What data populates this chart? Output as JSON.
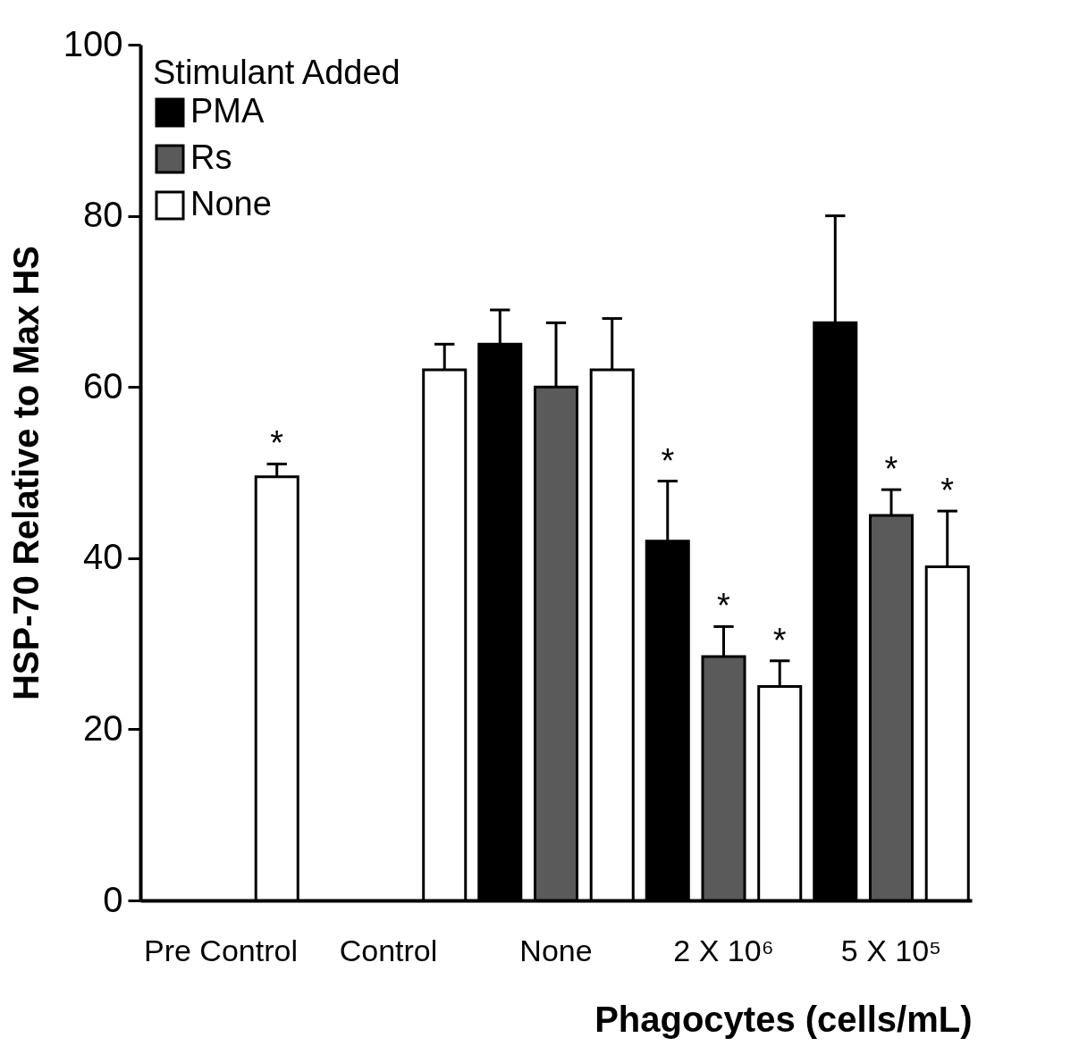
{
  "chart_data": {
    "type": "bar",
    "xlabel": "Phagocytes (cells/mL)",
    "ylabel": "HSP-70 Relative to Max HS",
    "legend_title": "Stimulant Added",
    "categories": [
      "Pre Control",
      "Control",
      "None",
      "2 X 10⁶",
      "5 X 10⁵"
    ],
    "series": [
      {
        "name": "PMA",
        "color": "#000000",
        "values": [
          null,
          null,
          65,
          42,
          67.5
        ],
        "errors": [
          null,
          null,
          [
            65,
            69
          ],
          [
            42,
            49
          ],
          [
            67.5,
            80
          ]
        ],
        "value_labels": [
          null,
          null,
          null,
          "*",
          null
        ]
      },
      {
        "name": "Rs",
        "color": "#5a5a5a",
        "values": [
          null,
          null,
          60,
          28.5,
          45
        ],
        "errors": [
          null,
          null,
          [
            60,
            67.5
          ],
          [
            28.5,
            32
          ],
          [
            45,
            48
          ]
        ],
        "value_labels": [
          null,
          null,
          null,
          "*",
          "*"
        ]
      },
      {
        "name": "None",
        "color": "#ffffff",
        "values": [
          49.5,
          62,
          62,
          25,
          39
        ],
        "errors": [
          [
            49.5,
            51
          ],
          [
            62,
            65
          ],
          [
            62,
            68
          ],
          [
            25,
            28
          ],
          [
            39,
            45.5
          ]
        ],
        "value_labels": [
          "*",
          null,
          null,
          "*",
          "*"
        ]
      }
    ],
    "ylim": [
      0,
      100
    ],
    "yticks": [
      0,
      20,
      40,
      60,
      80,
      100
    ],
    "grid": false,
    "legend": "top left"
  }
}
